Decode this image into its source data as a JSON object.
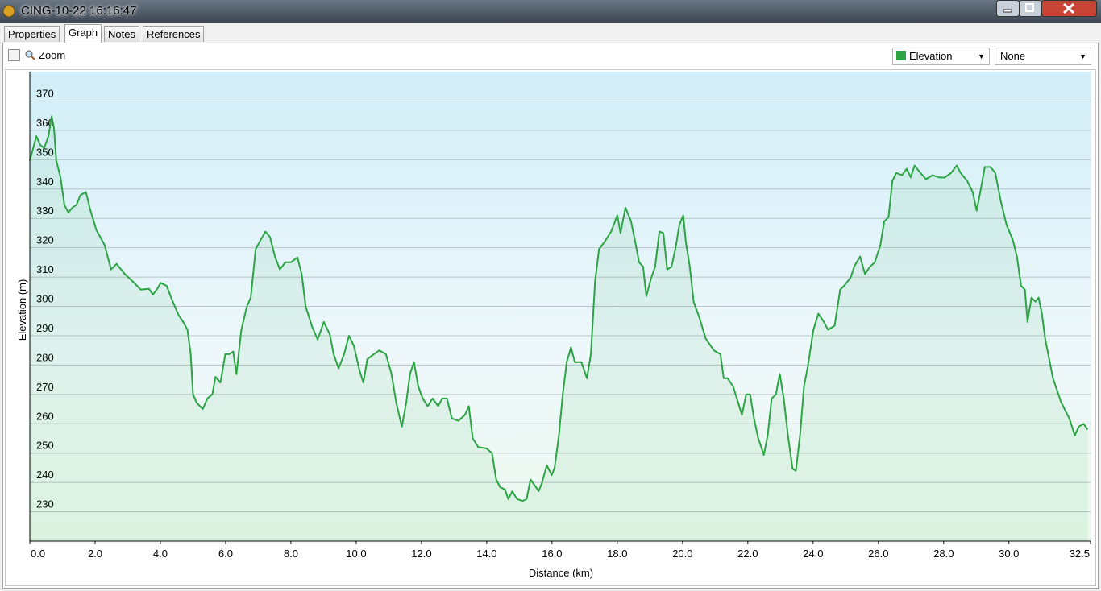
{
  "window": {
    "title": "CING-10-22 16:16:47"
  },
  "tabs": [
    "Properties",
    "Graph",
    "Notes",
    "References"
  ],
  "zoom_label": "Zoom",
  "second_dropdown": "None",
  "chart_data": {
    "type": "line",
    "xlabel": "Distance (km)",
    "ylabel": "Elevation (m)",
    "xlim": [
      0,
      32.5
    ],
    "ylim": [
      220,
      380
    ],
    "xticks": [
      {
        "value": 0,
        "label": "0.0"
      },
      {
        "value": 2,
        "label": "2.0"
      },
      {
        "value": 4,
        "label": "4.0"
      },
      {
        "value": 6,
        "label": "6.0"
      },
      {
        "value": 8,
        "label": "8.0"
      },
      {
        "value": 10,
        "label": "10.0"
      },
      {
        "value": 12,
        "label": "12.0"
      },
      {
        "value": 14,
        "label": "14.0"
      },
      {
        "value": 16,
        "label": "16.0"
      },
      {
        "value": 18,
        "label": "18.0"
      },
      {
        "value": 20,
        "label": "20.0"
      },
      {
        "value": 22,
        "label": "22.0"
      },
      {
        "value": 24,
        "label": "24.0"
      },
      {
        "value": 26,
        "label": "26.0"
      },
      {
        "value": 28,
        "label": "28.0"
      },
      {
        "value": 30,
        "label": "30.0"
      },
      32.5
    ],
    "yticks": [
      230,
      240,
      250,
      260,
      270,
      280,
      290,
      300,
      310,
      320,
      330,
      340,
      350,
      360,
      370
    ],
    "grid": true,
    "x": [
      0,
      0.2,
      0.32,
      0.44,
      0.57,
      0.67,
      0.74,
      0.81,
      0.94,
      1.06,
      1.18,
      1.31,
      1.43,
      1.55,
      1.72,
      1.85,
      2.04,
      2.29,
      2.49,
      2.66,
      2.91,
      3.15,
      3.4,
      3.65,
      3.77,
      3.89,
      4.01,
      4.19,
      4.38,
      4.56,
      4.7,
      4.83,
      4.93,
      5,
      5.12,
      5.3,
      5.44,
      5.59,
      5.69,
      5.84,
      5.99,
      6.11,
      6.23,
      6.33,
      6.48,
      6.65,
      6.77,
      6.92,
      7.04,
      7.22,
      7.36,
      7.51,
      7.66,
      7.83,
      8,
      8.2,
      8.33,
      8.45,
      8.65,
      8.82,
      9.01,
      9.19,
      9.31,
      9.46,
      9.63,
      9.78,
      9.93,
      10.1,
      10.22,
      10.34,
      10.54,
      10.71,
      10.91,
      11.08,
      11.23,
      11.4,
      11.53,
      11.65,
      11.77,
      11.9,
      12.04,
      12.19,
      12.34,
      12.51,
      12.64,
      12.78,
      12.93,
      13.13,
      13.33,
      13.45,
      13.57,
      13.74,
      13.99,
      14.16,
      14.29,
      14.41,
      14.56,
      14.66,
      14.78,
      14.93,
      15.1,
      15.22,
      15.34,
      15.47,
      15.59,
      15.69,
      15.84,
      15.99,
      16.08,
      16.21,
      16.33,
      16.45,
      16.58,
      16.7,
      16.9,
      17.07,
      17.19,
      17.32,
      17.44,
      17.61,
      17.81,
      18,
      18.1,
      18.25,
      18.42,
      18.55,
      18.67,
      18.79,
      18.89,
      19.04,
      19.16,
      19.29,
      19.41,
      19.53,
      19.66,
      19.78,
      19.9,
      20.02,
      20.1,
      20.22,
      20.34,
      20.52,
      20.71,
      20.96,
      21.16,
      21.26,
      21.38,
      21.55,
      21.7,
      21.82,
      21.95,
      22.07,
      22.19,
      22.32,
      22.49,
      22.61,
      22.73,
      22.86,
      22.98,
      23.1,
      23.23,
      23.37,
      23.47,
      23.6,
      23.72,
      23.84,
      24.01,
      24.16,
      24.33,
      24.46,
      24.66,
      24.83,
      24.95,
      25.15,
      25.27,
      25.44,
      25.59,
      25.74,
      25.89,
      26.06,
      26.18,
      26.31,
      26.43,
      26.55,
      26.72,
      26.87,
      26.99,
      27.11,
      27.29,
      27.46,
      27.66,
      27.86,
      28.03,
      28.23,
      28.4,
      28.52,
      28.72,
      28.89,
      29.01,
      29.14,
      29.26,
      29.43,
      29.58,
      29.75,
      29.93,
      30.12,
      30.25,
      30.37,
      30.49,
      30.57,
      30.69,
      30.81,
      30.91,
      31.01,
      31.11,
      31.35,
      31.6,
      31.85,
      32.02,
      32.14,
      32.29,
      32.41
    ],
    "series": [
      {
        "name": "Elevation",
        "color": "#2ca444",
        "values": [
          349.7,
          358,
          355,
          354,
          358,
          364.8,
          360.7,
          349.7,
          344,
          334.6,
          332,
          333.7,
          334.6,
          337.9,
          339,
          333,
          326,
          321,
          312.6,
          314.5,
          311,
          308.5,
          305.7,
          306,
          304,
          305.7,
          308,
          307,
          301.6,
          297,
          294.7,
          292,
          283.7,
          270,
          267,
          265,
          268.6,
          270,
          276,
          274,
          283.7,
          283.7,
          284.6,
          276.9,
          292,
          300,
          303,
          319.5,
          322,
          325.5,
          323.6,
          317,
          312.6,
          315,
          315,
          316.7,
          311,
          300,
          293,
          288.7,
          294.7,
          290.5,
          283.7,
          278.8,
          283.7,
          290,
          286.5,
          278.2,
          274,
          282,
          283.7,
          285,
          283.7,
          277,
          267,
          259,
          267,
          277,
          281,
          272.7,
          268.6,
          266,
          268.6,
          266,
          268.6,
          268.6,
          261.8,
          261,
          263,
          266,
          255,
          252,
          251.6,
          250,
          241,
          238.4,
          237.6,
          234.3,
          237,
          234.3,
          233.7,
          234.3,
          241,
          239,
          237,
          239.8,
          245.8,
          242.5,
          245,
          256,
          270,
          281,
          286,
          281,
          281,
          275.5,
          283.7,
          308.5,
          319.5,
          322,
          325.5,
          331,
          325,
          333.7,
          329,
          322,
          315,
          313.5,
          303.5,
          309.8,
          313.5,
          325.5,
          325,
          312.6,
          313.5,
          319.5,
          327.7,
          331,
          322,
          313.5,
          301.6,
          296,
          289,
          285,
          283.7,
          275.5,
          275.5,
          272.7,
          267.3,
          263,
          270,
          270,
          261.8,
          255,
          249.4,
          256,
          268.6,
          270,
          277,
          268.6,
          256,
          244.7,
          244,
          256,
          272.7,
          279.6,
          292,
          297.5,
          294.7,
          292,
          293.4,
          305.7,
          307,
          309.8,
          313.8,
          317,
          311,
          313.5,
          315,
          320.8,
          329,
          330.4,
          342.8,
          345.5,
          344.7,
          346.9,
          344,
          348,
          345.5,
          343.4,
          344.7,
          344,
          343.9,
          345.5,
          348,
          345.5,
          342.8,
          339,
          332.6,
          340,
          347.5,
          347.5,
          345.5,
          336,
          327.7,
          322.7,
          316.7,
          307,
          305.7,
          294.7,
          303,
          301.6,
          303,
          297.5,
          289,
          275.5,
          267.3,
          261.8,
          256,
          259,
          260,
          258
        ]
      }
    ]
  }
}
